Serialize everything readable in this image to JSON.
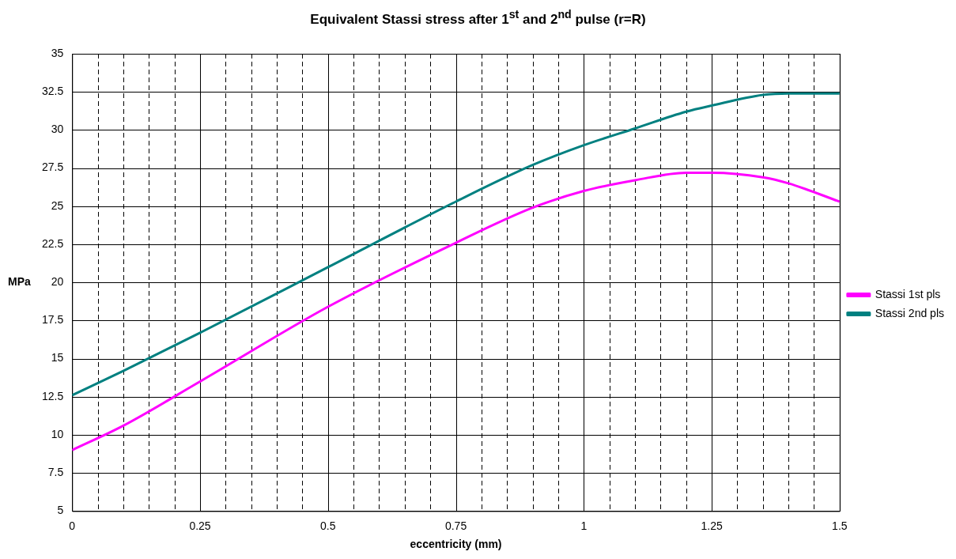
{
  "chart_data": {
    "type": "line",
    "title": "Equivalent Stassi stress after 1$^{st}$ and 2$^{nd}$ pulse (r=R)",
    "xlabel": "eccentricity (mm)",
    "ylabel": "MPa",
    "x": [
      0,
      0.1,
      0.25,
      0.5,
      0.75,
      0.9,
      1,
      1.1,
      1.2,
      1.25,
      1.35,
      1.4,
      1.5
    ],
    "series": [
      {
        "name": "Stassi 1st pls",
        "color": "#ff00ff",
        "values": [
          9.0,
          10.6,
          13.5,
          18.4,
          22.6,
          24.9,
          26.0,
          26.7,
          27.2,
          27.2,
          26.9,
          26.5,
          25.3
        ]
      },
      {
        "name": "Stassi 2nd pls",
        "color": "#008080",
        "values": [
          12.6,
          14.2,
          16.7,
          21.0,
          25.3,
          27.7,
          29.0,
          30.1,
          31.2,
          31.6,
          32.3,
          32.4,
          32.4
        ]
      }
    ],
    "xlim": [
      0,
      1.5
    ],
    "xticks": [
      0,
      {
        "value": 0.05,
        "label": null
      },
      {
        "value": 0.1,
        "label": null
      },
      {
        "value": 0.15,
        "label": null
      },
      {
        "value": 0.2,
        "label": null
      },
      0.25,
      {
        "value": 0.3,
        "label": null
      },
      {
        "value": 0.35,
        "label": null
      },
      {
        "value": 0.4,
        "label": null
      },
      {
        "value": 0.45,
        "label": null
      },
      0.5,
      {
        "value": 0.55,
        "label": null
      },
      {
        "value": 0.6,
        "label": null
      },
      {
        "value": 0.65,
        "label": null
      },
      {
        "value": 0.7,
        "label": null
      },
      0.75,
      {
        "value": 0.8,
        "label": null
      },
      {
        "value": 0.85,
        "label": null
      },
      {
        "value": 0.9,
        "label": null
      },
      {
        "value": 0.95,
        "label": null
      },
      1,
      {
        "value": 1.05,
        "label": null
      },
      {
        "value": 1.1,
        "label": null
      },
      {
        "value": 1.15,
        "label": null
      },
      {
        "value": 1.2,
        "label": null
      },
      1.25,
      {
        "value": 1.3,
        "label": null
      },
      {
        "value": 1.35,
        "label": null
      },
      {
        "value": 1.4,
        "label": null
      },
      {
        "value": 1.45,
        "label": null
      },
      1.5
    ],
    "ylim": [
      5,
      35
    ],
    "yticks": [
      5,
      7.5,
      10,
      12.5,
      15,
      17.5,
      20,
      22.5,
      25,
      27.5,
      30,
      32.5,
      35
    ],
    "grid": true,
    "legend": "right",
    "marker": "none",
    "line_style": "solid"
  }
}
